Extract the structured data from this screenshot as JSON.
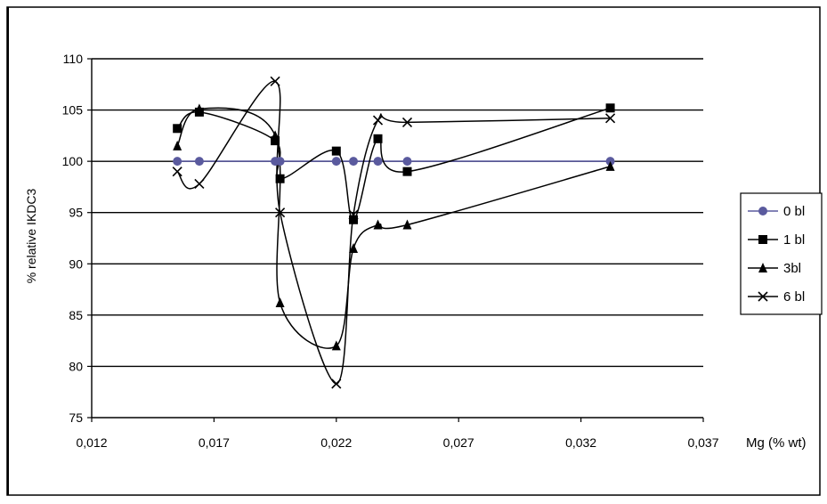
{
  "chart_data": {
    "type": "line",
    "title": "",
    "xlabel": "Mg (% wt)",
    "ylabel": "% relative IKDC3",
    "xlim": [
      0.012,
      0.037
    ],
    "ylim": [
      75,
      110
    ],
    "x_ticks": [
      0.012,
      0.017,
      0.022,
      0.027,
      0.032,
      0.037
    ],
    "x_tick_labels": [
      "0,012",
      "0,017",
      "0,022",
      "0,027",
      "0,032",
      "0,037"
    ],
    "y_ticks": [
      75,
      80,
      85,
      90,
      95,
      100,
      105,
      110
    ],
    "y_tick_labels": [
      "75",
      "80",
      "85",
      "90",
      "95",
      "100",
      "105",
      "110"
    ],
    "grid": "horizontal",
    "legend_position": "right",
    "series": [
      {
        "name": "0 bl",
        "color": "#5a5a9e",
        "marker": "circle",
        "x": [
          0.0155,
          0.0164,
          0.0195,
          0.0197,
          0.022,
          0.0227,
          0.0237,
          0.0249,
          0.0332
        ],
        "y": [
          100,
          100,
          100,
          100,
          100,
          100,
          100,
          100,
          100
        ]
      },
      {
        "name": "1 bl",
        "color": "#000000",
        "marker": "square",
        "x": [
          0.0155,
          0.0164,
          0.0195,
          0.0197,
          0.022,
          0.0227,
          0.0237,
          0.0249,
          0.0332
        ],
        "y": [
          103.2,
          104.8,
          102.0,
          98.3,
          101.0,
          94.3,
          102.2,
          99.0,
          105.2
        ]
      },
      {
        "name": "3bl",
        "color": "#000000",
        "marker": "triangle",
        "x": [
          0.0155,
          0.0164,
          0.0195,
          0.0197,
          0.022,
          0.0227,
          0.0237,
          0.0249,
          0.0332
        ],
        "y": [
          101.5,
          105.1,
          102.5,
          86.2,
          82.0,
          91.5,
          93.8,
          93.8,
          99.5
        ]
      },
      {
        "name": "6 bl",
        "color": "#000000",
        "marker": "x",
        "x": [
          0.0155,
          0.0164,
          0.0195,
          0.0197,
          0.022,
          0.0227,
          0.0237,
          0.0249,
          0.0332
        ],
        "y": [
          99.0,
          97.8,
          107.8,
          95.0,
          78.3,
          94.8,
          104.0,
          103.8,
          104.2
        ]
      }
    ]
  }
}
